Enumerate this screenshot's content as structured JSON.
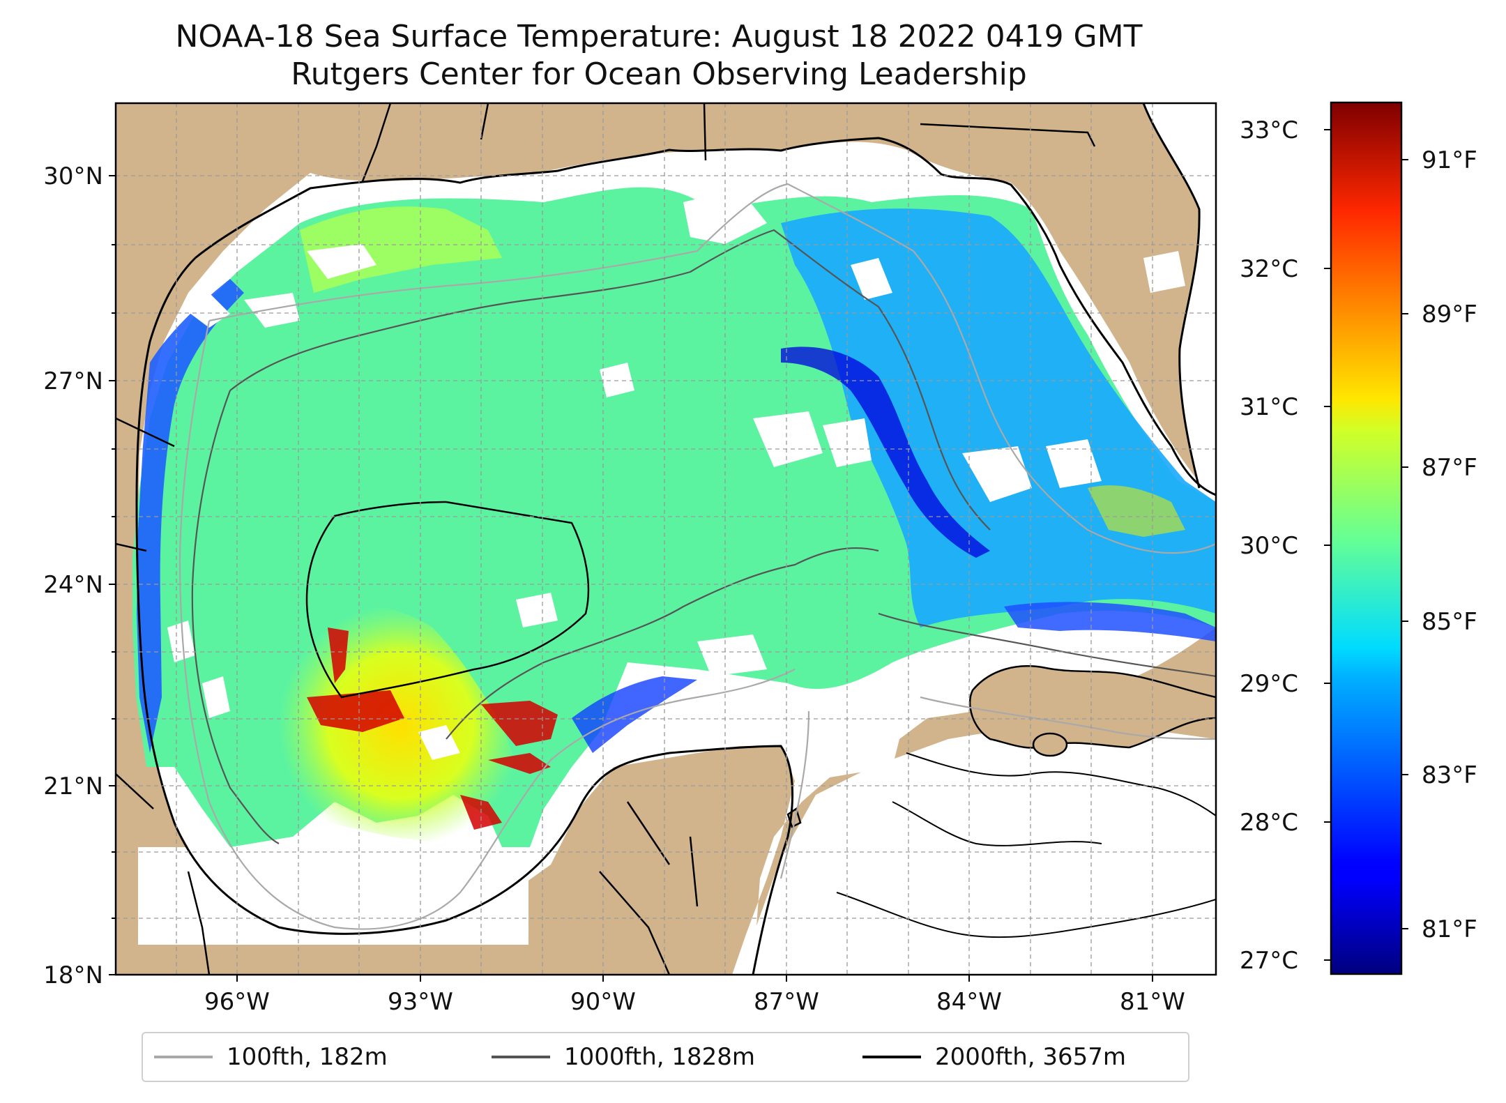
{
  "title": {
    "line1": "NOAA-18 Sea Surface Temperature: August 18 2022 0419 GMT",
    "line2": "Rutgers Center for Ocean Observing Leadership"
  },
  "map": {
    "lat_labels": [
      "30°N",
      "27°N",
      "24°N",
      "21°N",
      "18°N"
    ],
    "lon_labels": [
      "96°W",
      "93°W",
      "90°W",
      "87°W",
      "84°W",
      "81°W"
    ],
    "land_color": "#d2b48c",
    "no_data_color": "#ffffff"
  },
  "colorbar": {
    "celsius_labels": [
      "33°C",
      "32°C",
      "31°C",
      "30°C",
      "29°C",
      "28°C",
      "27°C"
    ],
    "fahrenheit_labels": [
      "91°F",
      "89°F",
      "87°F",
      "85°F",
      "83°F",
      "81°F"
    ],
    "colormap": "jet",
    "range_celsius": [
      26.9,
      33.2
    ]
  },
  "legend": {
    "items": [
      {
        "label": "100fth, 182m",
        "color": "#a9a9a9"
      },
      {
        "label": "1000fth, 1828m",
        "color": "#555555"
      },
      {
        "label": "2000fth, 3657m",
        "color": "#000000"
      }
    ]
  }
}
